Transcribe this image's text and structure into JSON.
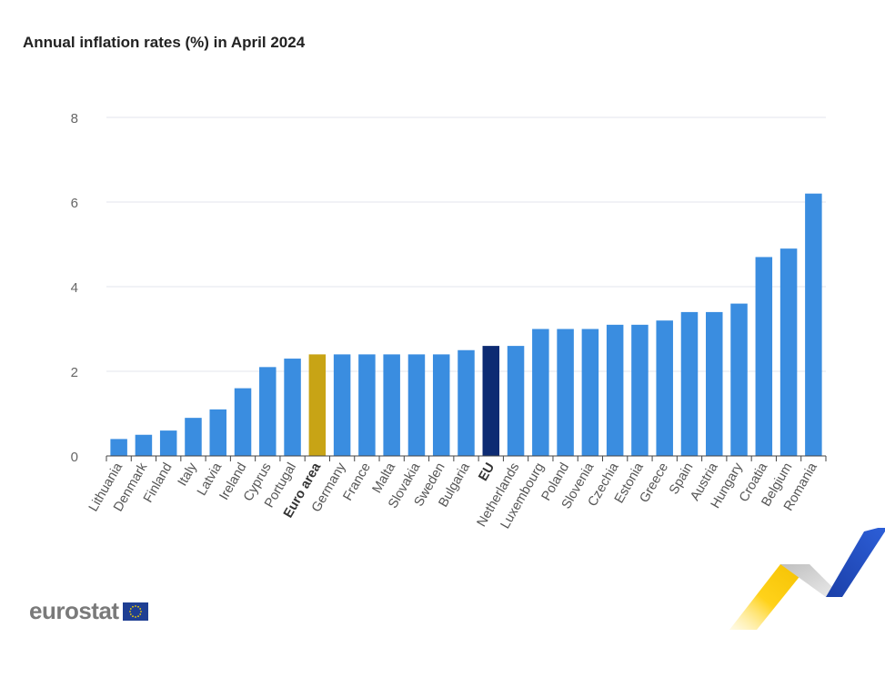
{
  "title": "Annual inflation rates (%) in April 2024",
  "logo": {
    "text": "eurostat",
    "flag_icon": "eu-flag-icon"
  },
  "colors": {
    "default_bar": "#3a8de0",
    "euro_area_bar": "#c8a415",
    "eu_bar": "#0d2b73",
    "grid": "#e3e6ee",
    "axis": "#444444",
    "tick_text": "#666666",
    "category_text": "#555555"
  },
  "chart_data": {
    "type": "bar",
    "title": "Annual inflation rates (%) in April 2024",
    "xlabel": "",
    "ylabel": "",
    "ylim": [
      0,
      8
    ],
    "yticks": [
      0,
      2,
      4,
      6,
      8
    ],
    "grid": true,
    "categories": [
      "Lithuania",
      "Denmark",
      "Finland",
      "Italy",
      "Latvia",
      "Ireland",
      "Cyprus",
      "Portugal",
      "Euro area",
      "Germany",
      "France",
      "Malta",
      "Slovakia",
      "Sweden",
      "Bulgaria",
      "EU",
      "Netherlands",
      "Luxembourg",
      "Poland",
      "Slovenia",
      "Czechia",
      "Estonia",
      "Greece",
      "Spain",
      "Austria",
      "Hungary",
      "Croatia",
      "Belgium",
      "Romania"
    ],
    "values": [
      0.4,
      0.5,
      0.6,
      0.9,
      1.1,
      1.6,
      2.1,
      2.3,
      2.4,
      2.4,
      2.4,
      2.4,
      2.4,
      2.4,
      2.5,
      2.6,
      2.6,
      3.0,
      3.0,
      3.0,
      3.1,
      3.1,
      3.2,
      3.4,
      3.4,
      3.6,
      4.7,
      4.9,
      6.2
    ],
    "highlighted": {
      "Euro area": "euro_area",
      "EU": "eu"
    }
  }
}
